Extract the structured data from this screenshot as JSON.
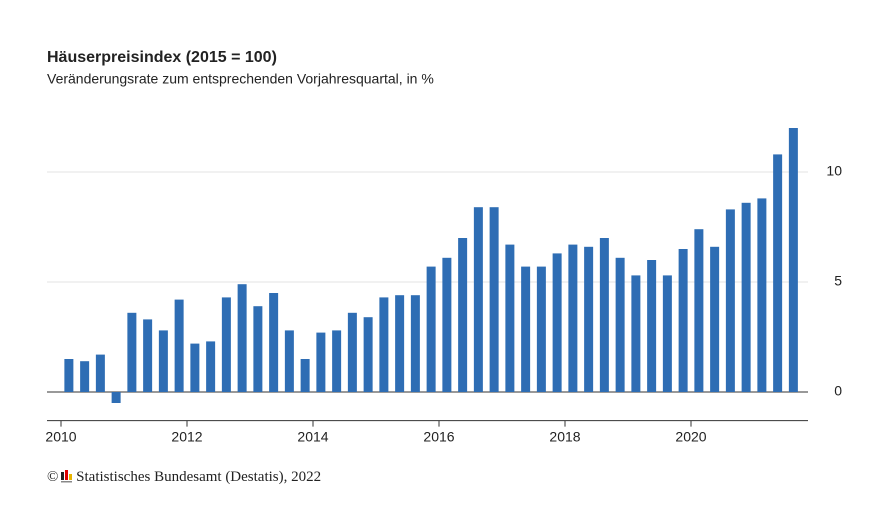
{
  "chart_data": {
    "type": "bar",
    "title": "Häuserpreisindex (2015 = 100)",
    "subtitle": "Veränderungsrate zum entsprechenden Vorjahresquartal, in %",
    "source": "© Statistisches Bundesamt (Destatis), 2022",
    "categories": [
      "2010",
      null,
      null,
      null,
      null,
      null,
      null,
      null,
      "2012",
      null,
      null,
      null,
      null,
      null,
      null,
      null,
      "2014",
      null,
      null,
      null,
      null,
      null,
      null,
      null,
      "2016",
      null,
      null,
      null,
      null,
      null,
      null,
      null,
      "2018",
      null,
      null,
      null,
      null,
      null,
      null,
      null,
      "2020",
      null,
      null,
      null,
      null,
      null,
      null
    ],
    "values": [
      1.5,
      1.4,
      1.7,
      -0.5,
      3.6,
      3.3,
      2.8,
      4.2,
      2.2,
      2.3,
      4.3,
      4.9,
      3.9,
      4.5,
      2.8,
      1.5,
      2.7,
      2.8,
      3.6,
      3.4,
      4.3,
      4.4,
      4.4,
      5.7,
      6.1,
      7.0,
      8.4,
      8.4,
      6.7,
      5.7,
      5.7,
      6.3,
      6.7,
      6.6,
      7.0,
      6.1,
      5.3,
      6.0,
      5.3,
      6.5,
      7.4,
      6.6,
      8.3,
      8.6,
      8.8,
      10.8,
      12.0
    ],
    "color": "#2e6db4",
    "ylim": [
      -1.3,
      12.4
    ],
    "yticks": [
      0,
      5,
      10
    ],
    "grid": true
  }
}
